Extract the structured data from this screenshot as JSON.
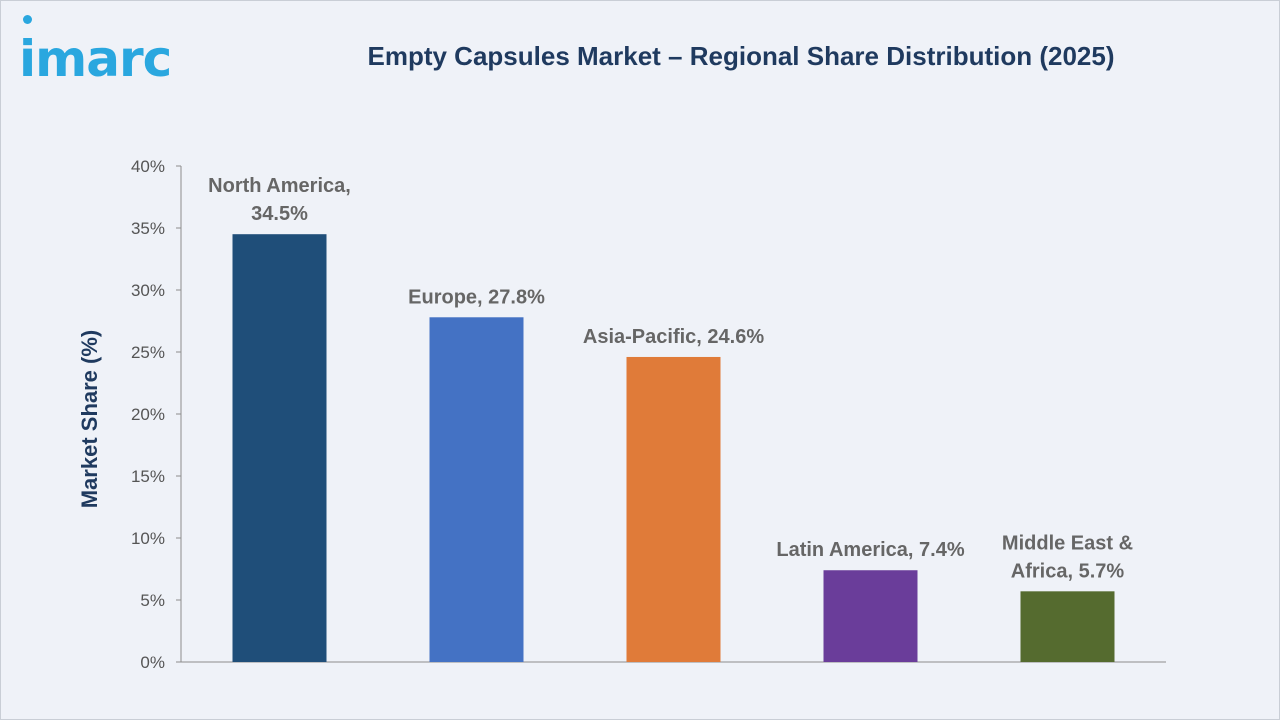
{
  "logo": {
    "text": "imarc",
    "color": "#2aa7df"
  },
  "chart_data": {
    "type": "bar",
    "title": "Empty Capsules Market – Regional Share Distribution (2025)",
    "ylabel": "Market Share (%)",
    "xlabel": "",
    "ylim": [
      0,
      40
    ],
    "yticks": [
      "0%",
      "5%",
      "10%",
      "15%",
      "20%",
      "25%",
      "30%",
      "35%",
      "40%"
    ],
    "categories": [
      "North America",
      "Europe",
      "Asia-Pacific",
      "Latin America",
      "Middle East & Africa"
    ],
    "values": [
      34.5,
      27.8,
      24.6,
      7.4,
      5.7
    ],
    "data_labels": [
      [
        "North America,",
        "34.5%"
      ],
      [
        "Europe, 27.8%"
      ],
      [
        "Asia-Pacific, 24.6%"
      ],
      [
        "Latin America, 7.4%"
      ],
      [
        "Middle East &",
        "Africa, 5.7%"
      ]
    ],
    "colors": [
      "#1f4e79",
      "#4472c4",
      "#e07b39",
      "#6a3d9a",
      "#556b2f"
    ],
    "grid": false
  }
}
